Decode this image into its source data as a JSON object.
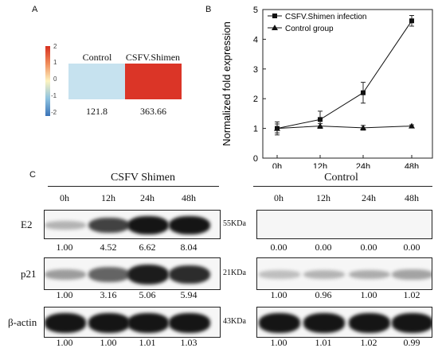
{
  "panel_labels": {
    "a": "A",
    "b": "B",
    "c": "C"
  },
  "panel_a": {
    "colorbar_ticks": [
      "2",
      "1",
      "0",
      "-1",
      "-2"
    ],
    "colorbar_colors": [
      "#d7301f",
      "#f08c5a",
      "#fdf3c0",
      "#8fc3e0",
      "#3a73b8"
    ],
    "columns": [
      "Control",
      "CSFV.Shimen"
    ],
    "cell_colors": [
      "#c6e2ef",
      "#db3527"
    ],
    "values": [
      "121.8",
      "363.66"
    ]
  },
  "chart_data": {
    "type": "line",
    "title": "",
    "xlabel": "",
    "ylabel": "Normalized fold expression",
    "categories": [
      "0h",
      "12h",
      "24h",
      "48h"
    ],
    "ylim": [
      0,
      5
    ],
    "yticks": [
      "0",
      "1",
      "2",
      "3",
      "4",
      "5"
    ],
    "legend_position": "top-left",
    "series": [
      {
        "name": "CSFV.Shimen infection",
        "marker": "square",
        "values": [
          1.0,
          1.3,
          2.2,
          4.62
        ],
        "errors": [
          0.22,
          0.28,
          0.35,
          0.18
        ]
      },
      {
        "name": "Control group",
        "marker": "triangle",
        "values": [
          1.0,
          1.08,
          1.02,
          1.08
        ],
        "errors": [
          0.15,
          0.08,
          0.08,
          0.04
        ]
      }
    ]
  },
  "panel_c": {
    "left_title": "CSFV Shimen",
    "right_title": "Control",
    "timepoints": [
      "0h",
      "12h",
      "24h",
      "48h"
    ],
    "rows": [
      {
        "label": "E2",
        "kda": "55KDa",
        "left": [
          "1.00",
          "4.52",
          "6.62",
          "8.04"
        ],
        "right": [
          "0.00",
          "0.00",
          "0.00",
          "0.00"
        ]
      },
      {
        "label": "p21",
        "kda": "21KDa",
        "left": [
          "1.00",
          "3.16",
          "5.06",
          "5.94"
        ],
        "right": [
          "1.00",
          "0.96",
          "1.00",
          "1.02"
        ]
      },
      {
        "label": "β-actin",
        "kda": "43KDa",
        "left": [
          "1.00",
          "1.00",
          "1.01",
          "1.03"
        ],
        "right": [
          "1.00",
          "1.01",
          "1.02",
          "0.99"
        ]
      }
    ],
    "left_intensity": [
      [
        0.25,
        0.75,
        0.95,
        0.95
      ],
      [
        0.35,
        0.6,
        0.92,
        0.85
      ],
      [
        0.95,
        0.95,
        0.95,
        0.95
      ]
    ],
    "right_intensity": [
      [
        0,
        0,
        0,
        0
      ],
      [
        0.2,
        0.25,
        0.28,
        0.32
      ],
      [
        0.95,
        0.95,
        0.95,
        0.95
      ]
    ]
  }
}
